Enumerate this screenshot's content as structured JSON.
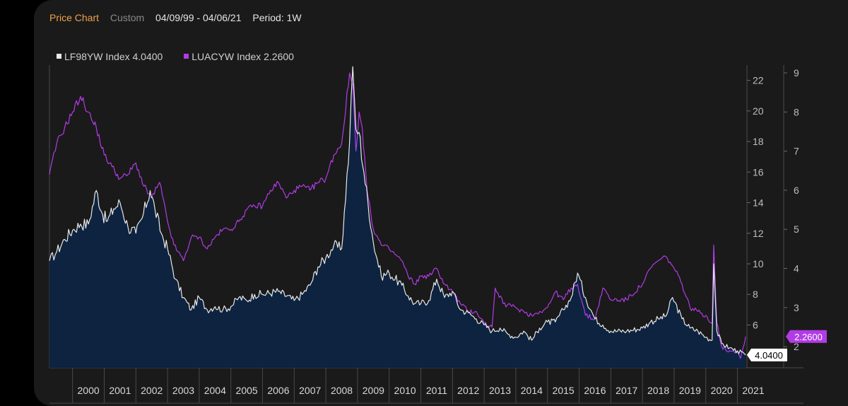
{
  "header": {
    "title": "Price Chart",
    "mode": "Custom",
    "range": "04/09/99 - 04/06/21",
    "period": "Period: 1W"
  },
  "legend": [
    {
      "label": "LF98YW Index 4.0400",
      "color": "#e8e8e8"
    },
    {
      "label": "LUACYW Index 2.2600",
      "color": "#b13ce6"
    }
  ],
  "chart_data": {
    "type": "line",
    "x_ticks": [
      "2000",
      "2001",
      "2002",
      "2003",
      "2004",
      "2005",
      "2006",
      "2007",
      "2008",
      "2009",
      "2010",
      "2011",
      "2012",
      "2013",
      "2014",
      "2015",
      "2016",
      "2017",
      "2018",
      "2019",
      "2020",
      "2021"
    ],
    "axes": {
      "left": {
        "series": "LF98YW Index",
        "ticks": [
          6,
          8,
          10,
          12,
          14,
          16,
          18,
          20,
          22
        ],
        "ylim": [
          3.2,
          23.0
        ]
      },
      "right": {
        "series": "LUACYW Index",
        "ticks": [
          2,
          3,
          4,
          5,
          6,
          7,
          8,
          9
        ],
        "ylim": [
          1.46,
          9.2
        ]
      }
    },
    "series": [
      {
        "name": "LF98YW Index",
        "color": "#e8e8e8",
        "fill": "#0d2340",
        "last_value_label": "4.0400",
        "x": [
          1999.27,
          1999.5,
          1999.75,
          2000.0,
          2000.25,
          2000.5,
          2000.75,
          2000.95,
          2001.1,
          2001.3,
          2001.5,
          2001.75,
          2002.0,
          2002.2,
          2002.45,
          2002.6,
          2002.8,
          2003.0,
          2003.25,
          2003.5,
          2003.75,
          2004.0,
          2004.25,
          2004.5,
          2004.75,
          2005.0,
          2005.25,
          2005.5,
          2005.75,
          2006.0,
          2006.5,
          2007.0,
          2007.25,
          2007.5,
          2007.75,
          2008.0,
          2008.25,
          2008.5,
          2008.75,
          2008.85,
          2008.95,
          2009.05,
          2009.2,
          2009.5,
          2009.75,
          2010.0,
          2010.4,
          2010.6,
          2010.8,
          2011.0,
          2011.25,
          2011.5,
          2011.75,
          2012.0,
          2012.25,
          2012.5,
          2012.75,
          2013.0,
          2013.25,
          2013.5,
          2013.75,
          2014.0,
          2014.25,
          2014.5,
          2014.75,
          2015.0,
          2015.25,
          2015.5,
          2015.75,
          2015.95,
          2016.2,
          2016.5,
          2016.75,
          2017.0,
          2017.5,
          2018.0,
          2018.25,
          2018.5,
          2018.75,
          2018.95,
          2019.25,
          2019.5,
          2019.75,
          2020.0,
          2020.2,
          2020.25,
          2020.35,
          2020.5,
          2020.75,
          2021.0,
          2021.26
        ],
        "values": [
          10.2,
          10.8,
          11.6,
          12.2,
          12.6,
          12.6,
          14.8,
          13.2,
          12.8,
          13.6,
          14.0,
          12.4,
          12.0,
          13.0,
          14.8,
          13.6,
          12.0,
          11.0,
          9.0,
          7.8,
          7.0,
          7.8,
          7.0,
          7.2,
          7.0,
          7.2,
          7.8,
          7.6,
          8.0,
          8.0,
          8.2,
          7.6,
          8.0,
          8.6,
          9.8,
          10.4,
          11.2,
          11.0,
          18.0,
          22.9,
          18.8,
          18.6,
          16.0,
          11.4,
          9.2,
          9.4,
          8.6,
          7.9,
          7.4,
          7.4,
          7.6,
          9.0,
          7.8,
          8.2,
          7.0,
          6.8,
          6.4,
          6.0,
          5.6,
          5.8,
          5.4,
          5.2,
          5.6,
          5.0,
          5.8,
          6.2,
          6.2,
          7.0,
          7.8,
          9.4,
          7.8,
          6.4,
          6.0,
          5.6,
          5.6,
          5.8,
          6.2,
          6.4,
          6.6,
          7.8,
          6.4,
          5.8,
          5.6,
          5.2,
          5.0,
          10.0,
          5.6,
          4.8,
          4.5,
          4.3,
          4.04
        ]
      },
      {
        "name": "LUACYW Index",
        "color": "#b13ce6",
        "last_value_label": "2.2600",
        "x": [
          1999.27,
          1999.5,
          1999.75,
          2000.0,
          2000.25,
          2000.5,
          2000.6,
          2000.75,
          2001.0,
          2001.25,
          2001.5,
          2001.75,
          2002.0,
          2002.25,
          2002.5,
          2002.75,
          2003.0,
          2003.2,
          2003.5,
          2003.75,
          2004.0,
          2004.25,
          2004.5,
          2004.75,
          2005.0,
          2005.25,
          2005.5,
          2005.75,
          2006.0,
          2006.25,
          2006.5,
          2006.75,
          2007.0,
          2007.25,
          2007.5,
          2007.75,
          2008.0,
          2008.25,
          2008.5,
          2008.75,
          2008.85,
          2008.95,
          2009.05,
          2009.15,
          2009.3,
          2009.5,
          2009.75,
          2010.0,
          2010.4,
          2010.6,
          2010.8,
          2011.0,
          2011.25,
          2011.5,
          2011.75,
          2012.0,
          2012.25,
          2012.5,
          2012.75,
          2013.0,
          2013.25,
          2013.35,
          2013.6,
          2014.0,
          2014.25,
          2014.5,
          2014.75,
          2015.0,
          2015.25,
          2015.5,
          2015.75,
          2015.95,
          2016.2,
          2016.5,
          2016.75,
          2017.0,
          2017.5,
          2018.0,
          2018.25,
          2018.5,
          2018.75,
          2019.0,
          2019.25,
          2019.5,
          2019.75,
          2020.0,
          2020.2,
          2020.25,
          2020.35,
          2020.5,
          2020.75,
          2021.0,
          2021.1,
          2021.26
        ],
        "values": [
          6.4,
          7.2,
          7.6,
          8.0,
          8.4,
          8.0,
          7.8,
          7.6,
          6.9,
          6.6,
          6.3,
          6.4,
          6.7,
          6.1,
          5.8,
          6.2,
          5.2,
          4.6,
          4.2,
          4.8,
          4.8,
          4.5,
          4.8,
          5.0,
          5.0,
          5.2,
          5.5,
          5.6,
          5.6,
          6.0,
          6.2,
          5.8,
          6.0,
          6.1,
          6.0,
          6.2,
          6.3,
          6.9,
          7.2,
          9.0,
          8.7,
          7.0,
          8.0,
          7.6,
          6.0,
          5.0,
          4.6,
          4.5,
          4.2,
          3.8,
          3.6,
          3.8,
          3.8,
          4.0,
          3.6,
          3.4,
          3.1,
          2.9,
          2.9,
          2.6,
          2.5,
          3.5,
          3.1,
          3.0,
          2.9,
          2.8,
          2.9,
          3.0,
          3.4,
          3.2,
          3.5,
          3.6,
          2.8,
          2.7,
          3.5,
          3.2,
          3.2,
          3.6,
          4.0,
          4.2,
          4.3,
          4.0,
          3.6,
          3.0,
          2.9,
          2.8,
          2.6,
          4.6,
          2.6,
          2.0,
          1.9,
          1.9,
          1.7,
          2.26
        ]
      }
    ]
  }
}
